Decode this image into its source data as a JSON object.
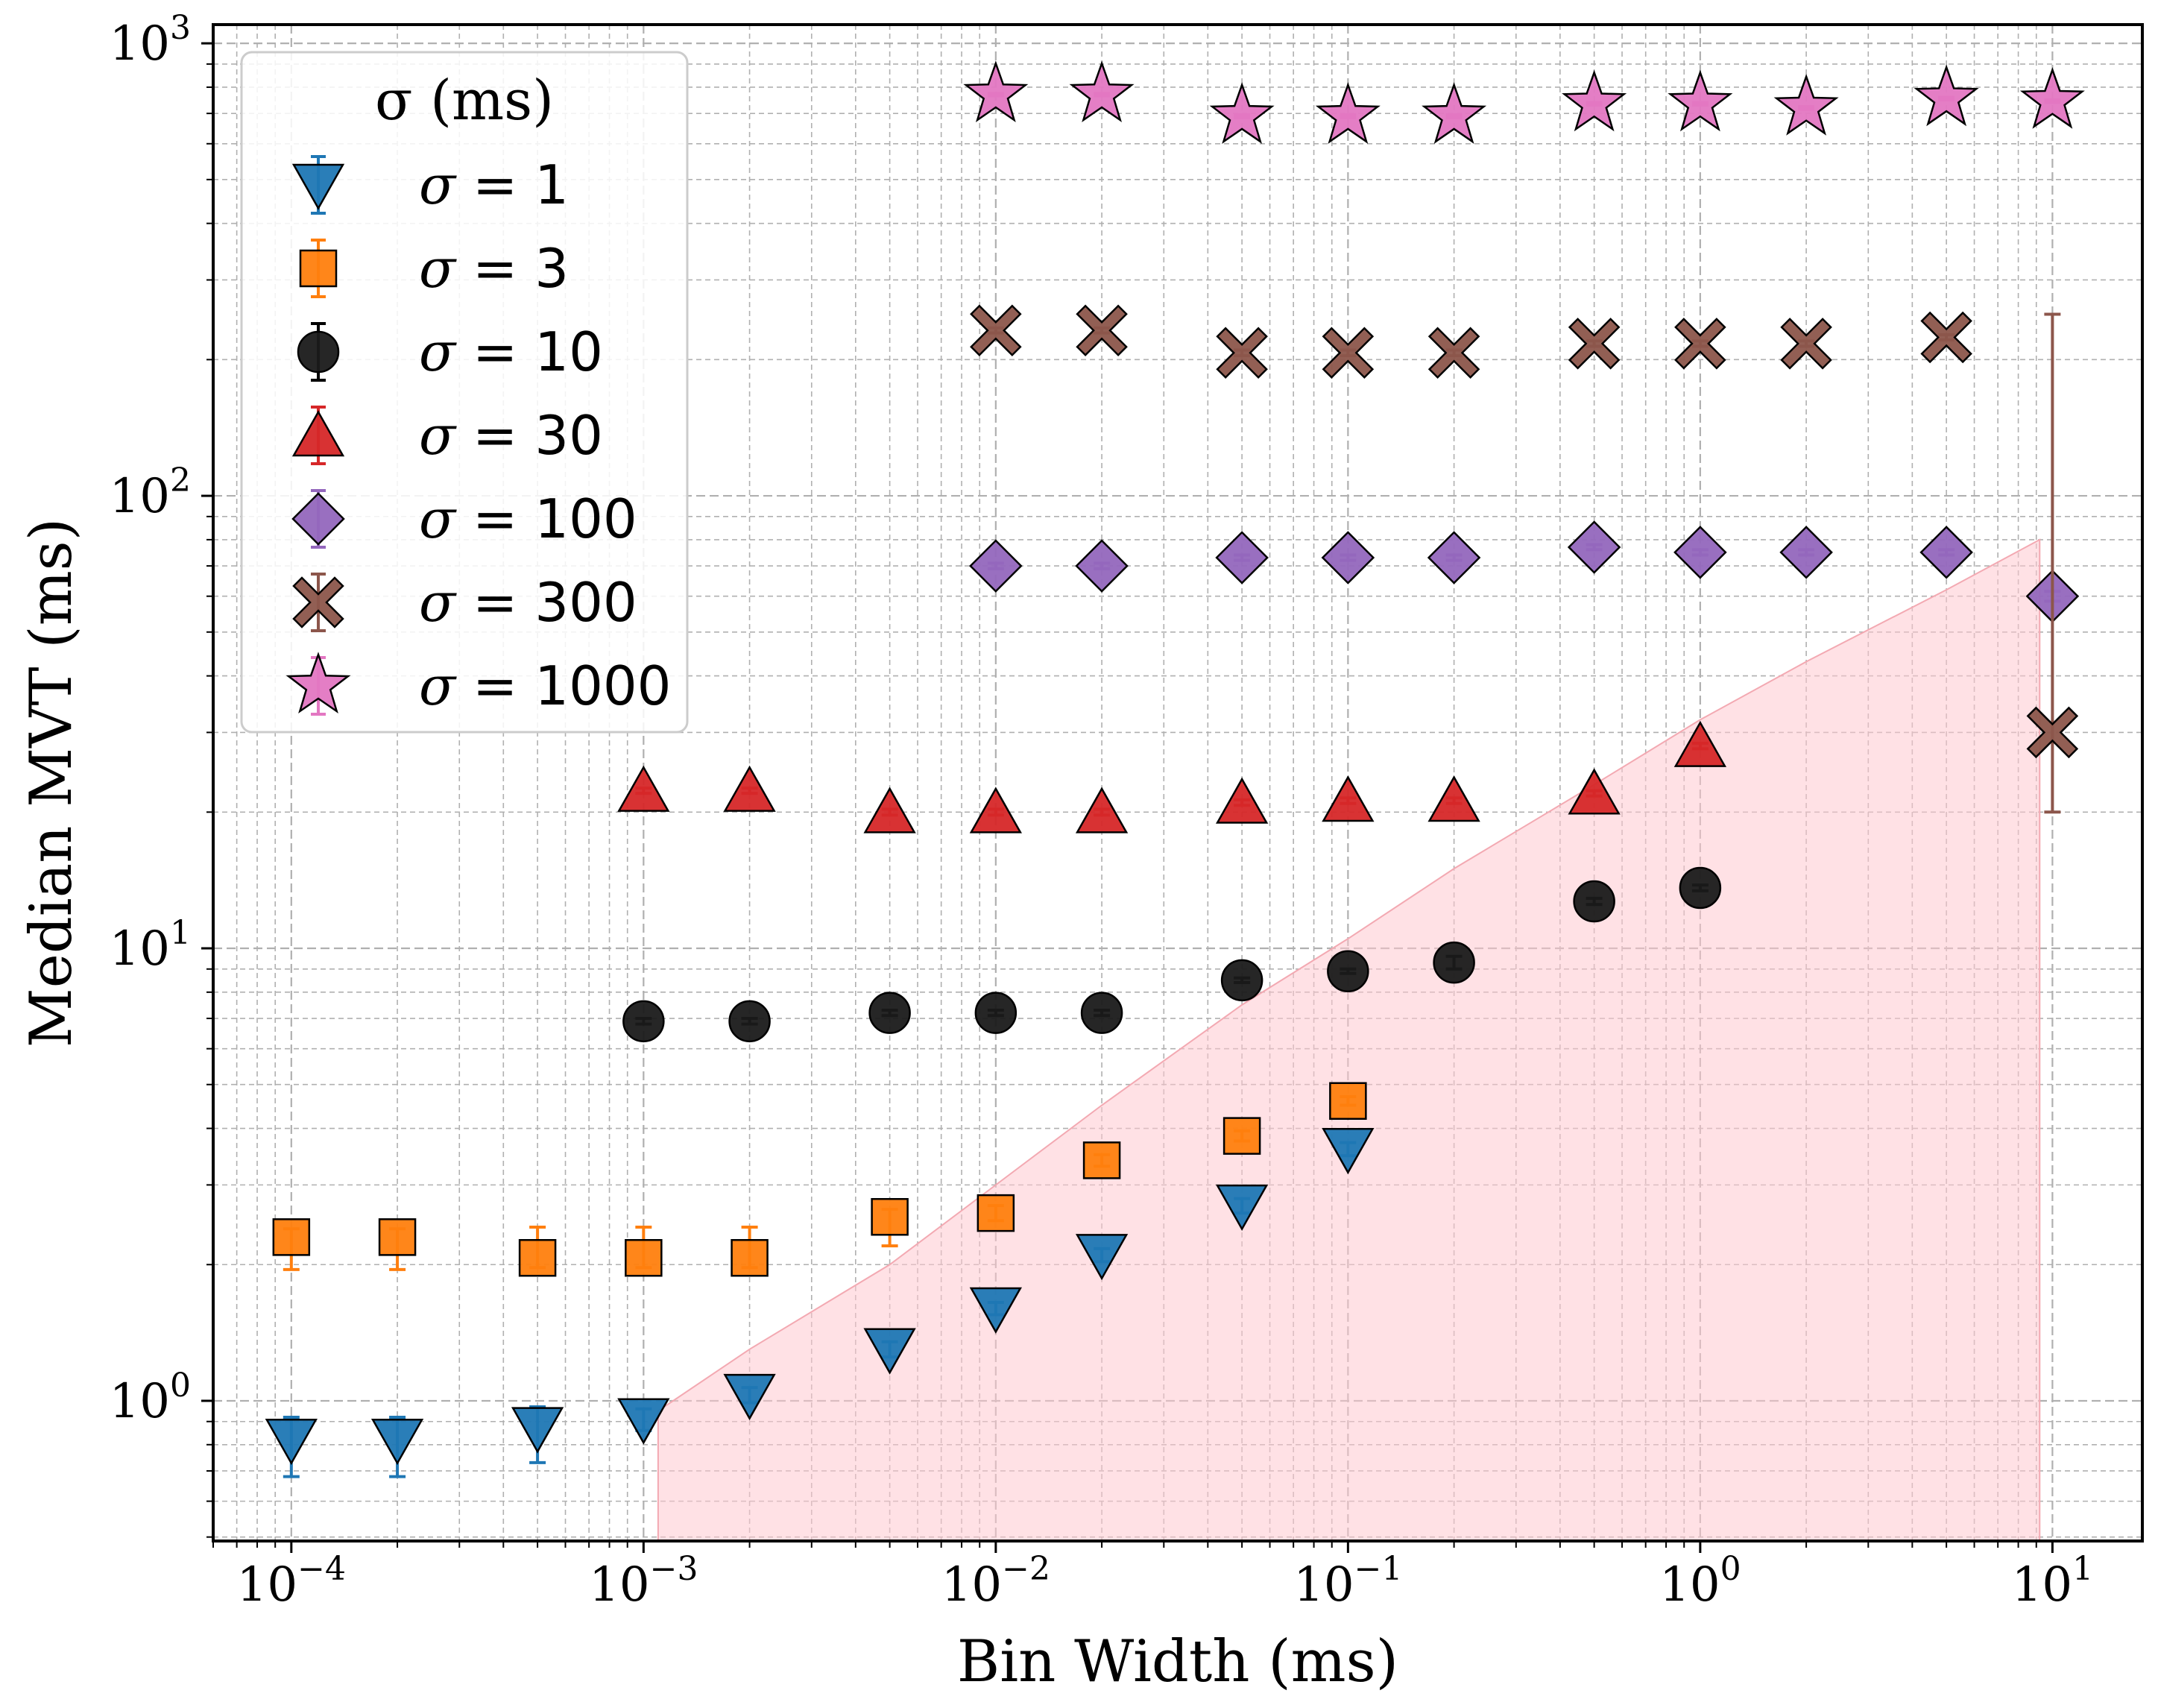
{
  "chart_data": {
    "type": "scatter",
    "title": "",
    "xlabel": "Bin Width (ms)",
    "ylabel": "Median MVT (ms)",
    "xscale": "log",
    "yscale": "log",
    "xlim": [
      6e-05,
      18
    ],
    "ylim": [
      0.49,
      1100
    ],
    "grid": true,
    "x_ticks": [
      {
        "value": 0.0001,
        "base": "10",
        "exp": "−4"
      },
      {
        "value": 0.001,
        "base": "10",
        "exp": "−3"
      },
      {
        "value": 0.01,
        "base": "10",
        "exp": "−2"
      },
      {
        "value": 0.1,
        "base": "10",
        "exp": "−1"
      },
      {
        "value": 1,
        "base": "10",
        "exp": "0"
      },
      {
        "value": 10,
        "base": "10",
        "exp": "1"
      }
    ],
    "y_ticks": [
      {
        "value": 1,
        "base": "10",
        "exp": "0"
      },
      {
        "value": 10,
        "base": "10",
        "exp": "1"
      },
      {
        "value": 100,
        "base": "10",
        "exp": "2"
      },
      {
        "value": 1000,
        "base": "10",
        "exp": "3"
      }
    ],
    "shaded_region": {
      "color": "#ffc9cf",
      "upper_x": [
        0.0011,
        0.002,
        0.005,
        0.01,
        0.02,
        0.05,
        0.1,
        0.2,
        0.5,
        1,
        2,
        5,
        9.2
      ],
      "upper_y": [
        0.95,
        1.3,
        2.0,
        3.0,
        4.5,
        7.5,
        10.5,
        15.0,
        23.0,
        32.0,
        43.0,
        62.0,
        80.0
      ],
      "ymin": 0.49
    },
    "legend": {
      "title": "σ (ms)",
      "location": "upper-left"
    },
    "series": [
      {
        "name": "σ = 1",
        "label_sym": "σ",
        "label_rest": " = 1",
        "marker": "triangle-down",
        "color": "#1f77b4",
        "x": [
          0.0001,
          0.0002,
          0.0005,
          0.001,
          0.002,
          0.005,
          0.01,
          0.02,
          0.05,
          0.1
        ],
        "y": [
          0.82,
          0.82,
          0.87,
          0.91,
          1.03,
          1.3,
          1.6,
          2.1,
          2.7,
          3.6
        ],
        "err_low": [
          0.14,
          0.14,
          0.14,
          0.05,
          0.04,
          0.05,
          0.05,
          0.07,
          0.1,
          0.12
        ],
        "err_high": [
          0.1,
          0.1,
          0.1,
          0.05,
          0.04,
          0.05,
          0.05,
          0.07,
          0.1,
          0.12
        ]
      },
      {
        "name": "σ = 3",
        "label_sym": "σ",
        "label_rest": " = 3",
        "marker": "square",
        "color": "#ff7f0e",
        "x": [
          0.0001,
          0.0002,
          0.0005,
          0.001,
          0.002,
          0.005,
          0.01,
          0.02,
          0.05,
          0.1
        ],
        "y": [
          2.3,
          2.3,
          2.07,
          2.07,
          2.07,
          2.55,
          2.6,
          3.4,
          3.85,
          4.6
        ],
        "err_low": [
          0.35,
          0.35,
          0.1,
          0.1,
          0.1,
          0.35,
          0.1,
          0.1,
          0.1,
          0.1
        ],
        "err_high": [
          0.1,
          0.1,
          0.35,
          0.35,
          0.35,
          0.1,
          0.1,
          0.1,
          0.1,
          0.1
        ]
      },
      {
        "name": "σ = 10",
        "label_sym": "σ",
        "label_rest": " = 10",
        "marker": "circle",
        "color": "#1a1a1a",
        "x": [
          0.001,
          0.002,
          0.005,
          0.01,
          0.02,
          0.05,
          0.1,
          0.2,
          0.5,
          1
        ],
        "y": [
          6.9,
          6.9,
          7.2,
          7.2,
          7.2,
          8.5,
          8.9,
          9.3,
          12.7,
          13.6
        ],
        "err_low": [
          0.1,
          0.1,
          0.1,
          0.1,
          0.1,
          0.1,
          0.1,
          0.3,
          0.2,
          0.2
        ],
        "err_high": [
          0.1,
          0.1,
          0.1,
          0.1,
          0.1,
          0.1,
          0.1,
          0.3,
          0.2,
          0.2
        ]
      },
      {
        "name": "σ = 30",
        "label_sym": "σ",
        "label_rest": " = 30",
        "marker": "triangle-up",
        "color": "#d62728",
        "x": [
          0.001,
          0.002,
          0.005,
          0.01,
          0.02,
          0.05,
          0.1,
          0.2,
          0.5,
          1
        ],
        "y": [
          22.3,
          22.3,
          20.0,
          20.0,
          20.0,
          21.0,
          21.2,
          21.2,
          22.0,
          28.0
        ],
        "err_low": [
          0.3,
          0.3,
          0.3,
          0.3,
          0.3,
          0.3,
          0.3,
          0.3,
          0.3,
          0.4
        ],
        "err_high": [
          0.3,
          0.3,
          0.3,
          0.3,
          0.3,
          0.3,
          0.3,
          0.3,
          0.3,
          0.4
        ]
      },
      {
        "name": "σ = 100",
        "label_sym": "σ",
        "label_rest": " = 100",
        "marker": "diamond",
        "color": "#9467bd",
        "x": [
          0.01,
          0.02,
          0.05,
          0.1,
          0.2,
          0.5,
          1,
          2,
          5,
          10
        ],
        "y": [
          70,
          70,
          73,
          73,
          73,
          77,
          75,
          75,
          75,
          60
        ],
        "err_low": [
          1,
          1,
          1,
          1,
          1,
          1,
          1,
          1,
          1,
          1.5
        ],
        "err_high": [
          1,
          1,
          1,
          1,
          1,
          1,
          1,
          1,
          1,
          1.5
        ]
      },
      {
        "name": "σ = 300",
        "label_sym": "σ",
        "label_rest": " = 300",
        "marker": "x-filled",
        "color": "#8c564b",
        "x": [
          0.01,
          0.02,
          0.05,
          0.1,
          0.2,
          0.5,
          1,
          2,
          5,
          10
        ],
        "y": [
          232,
          232,
          207,
          207,
          207,
          217,
          217,
          217,
          224,
          30
        ],
        "err_low": [
          3,
          3,
          3,
          3,
          3,
          3,
          3,
          3,
          3,
          10
        ],
        "err_high": [
          3,
          3,
          3,
          3,
          3,
          3,
          3,
          3,
          3,
          222
        ]
      },
      {
        "name": "σ = 1000",
        "label_sym": "σ",
        "label_rest": " = 1000",
        "marker": "star",
        "color": "#e377c2",
        "x": [
          0.01,
          0.02,
          0.05,
          0.1,
          0.2,
          0.5,
          1,
          2,
          5,
          10
        ],
        "y": [
          770,
          770,
          690,
          690,
          690,
          735,
          735,
          720,
          755,
          745
        ],
        "err_low": [
          5,
          5,
          5,
          5,
          5,
          5,
          5,
          5,
          5,
          5
        ],
        "err_high": [
          5,
          5,
          5,
          5,
          5,
          5,
          5,
          5,
          5,
          5
        ]
      }
    ]
  }
}
